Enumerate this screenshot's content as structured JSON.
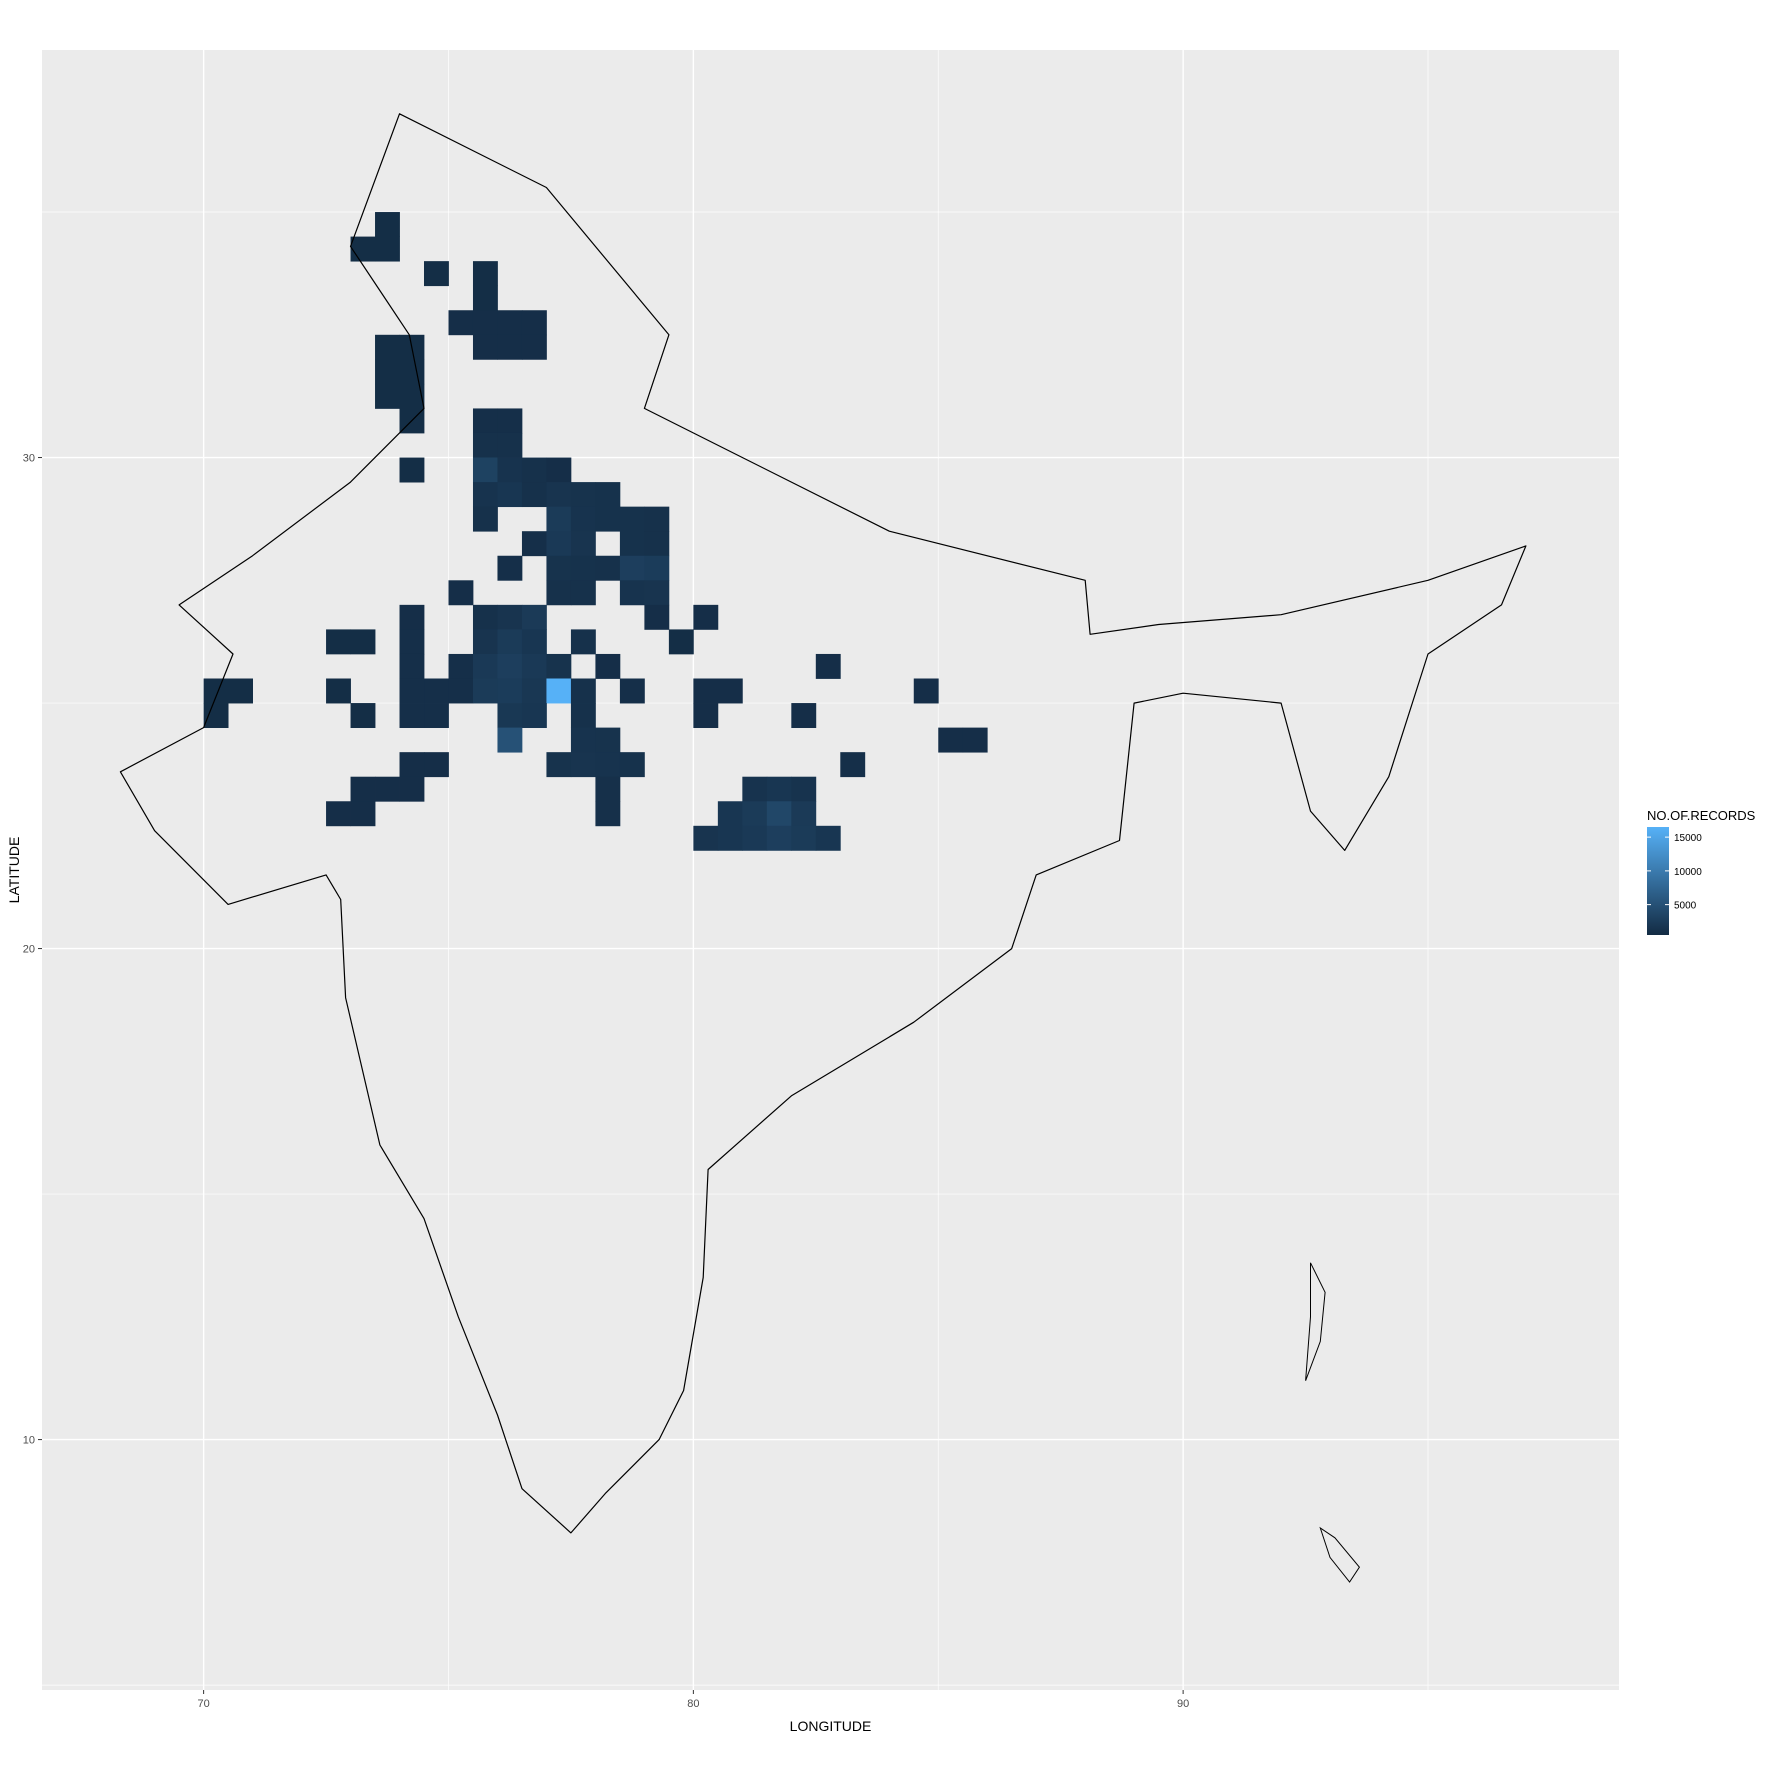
{
  "chart_data": {
    "type": "heatmap",
    "title": "",
    "xlabel": "LONGITUDE",
    "ylabel": "LATITUDE",
    "xlim": [
      66.7,
      98.9
    ],
    "ylim": [
      4.9,
      38.3
    ],
    "x_ticks": [
      70,
      80,
      90
    ],
    "y_ticks": [
      10,
      20,
      30
    ],
    "grid": true,
    "cell_size_deg": 0.5,
    "legend": {
      "title": "NO.OF.RECORDS",
      "position": "right",
      "ticks": [
        5000,
        10000,
        15000
      ],
      "min": 500,
      "max": 16500,
      "color_low": "#132B43",
      "color_high": "#56B1F7"
    },
    "cells": [
      [
        73.75,
        34.75,
        800
      ],
      [
        73.25,
        34.25,
        800
      ],
      [
        73.75,
        34.25,
        800
      ],
      [
        74.75,
        33.75,
        800
      ],
      [
        75.75,
        33.75,
        800
      ],
      [
        75.75,
        33.25,
        800
      ],
      [
        75.25,
        32.75,
        900
      ],
      [
        75.75,
        32.75,
        900
      ],
      [
        76.25,
        32.75,
        900
      ],
      [
        76.75,
        32.75,
        900
      ],
      [
        73.75,
        32.25,
        800
      ],
      [
        74.25,
        32.25,
        800
      ],
      [
        75.75,
        32.25,
        900
      ],
      [
        76.25,
        32.25,
        900
      ],
      [
        76.75,
        32.25,
        900
      ],
      [
        73.75,
        31.75,
        800
      ],
      [
        74.25,
        31.75,
        800
      ],
      [
        73.75,
        31.25,
        800
      ],
      [
        74.25,
        31.25,
        800
      ],
      [
        74.25,
        30.75,
        800
      ],
      [
        75.75,
        30.75,
        1000
      ],
      [
        76.25,
        30.75,
        1000
      ],
      [
        75.75,
        30.25,
        1200
      ],
      [
        76.25,
        30.25,
        1200
      ],
      [
        74.25,
        29.75,
        800
      ],
      [
        75.75,
        29.75,
        3200
      ],
      [
        76.25,
        29.75,
        1500
      ],
      [
        76.75,
        29.75,
        1200
      ],
      [
        77.25,
        29.75,
        900
      ],
      [
        75.75,
        29.25,
        1500
      ],
      [
        76.25,
        29.25,
        1800
      ],
      [
        76.75,
        29.25,
        1200
      ],
      [
        77.25,
        29.25,
        1600
      ],
      [
        77.75,
        29.25,
        1400
      ],
      [
        78.25,
        29.25,
        1300
      ],
      [
        75.75,
        28.75,
        1200
      ],
      [
        77.25,
        28.75,
        2400
      ],
      [
        77.75,
        28.75,
        1500
      ],
      [
        78.25,
        28.75,
        1300
      ],
      [
        78.75,
        28.75,
        1300
      ],
      [
        79.25,
        28.75,
        1200
      ],
      [
        76.75,
        28.25,
        1000
      ],
      [
        77.25,
        28.25,
        2200
      ],
      [
        77.75,
        28.25,
        1600
      ],
      [
        78.75,
        28.25,
        1300
      ],
      [
        79.25,
        28.25,
        1200
      ],
      [
        76.25,
        27.75,
        1000
      ],
      [
        77.25,
        27.75,
        1400
      ],
      [
        77.75,
        27.75,
        1300
      ],
      [
        78.25,
        27.75,
        1200
      ],
      [
        78.75,
        27.75,
        2800
      ],
      [
        79.25,
        27.75,
        2500
      ],
      [
        75.25,
        27.25,
        900
      ],
      [
        77.25,
        27.25,
        1200
      ],
      [
        77.75,
        27.25,
        1200
      ],
      [
        78.75,
        27.25,
        1500
      ],
      [
        79.25,
        27.25,
        1600
      ],
      [
        74.25,
        26.75,
        900
      ],
      [
        75.75,
        26.75,
        1200
      ],
      [
        76.25,
        26.75,
        1600
      ],
      [
        76.75,
        26.75,
        2300
      ],
      [
        79.25,
        26.75,
        900
      ],
      [
        80.25,
        26.75,
        900
      ],
      [
        72.75,
        26.25,
        800
      ],
      [
        73.25,
        26.25,
        800
      ],
      [
        74.25,
        26.25,
        1000
      ],
      [
        75.75,
        26.25,
        1600
      ],
      [
        76.25,
        26.25,
        2400
      ],
      [
        76.75,
        26.25,
        1800
      ],
      [
        77.75,
        26.25,
        1200
      ],
      [
        79.75,
        26.25,
        800
      ],
      [
        74.25,
        25.75,
        1000
      ],
      [
        75.25,
        25.75,
        1000
      ],
      [
        75.75,
        25.75,
        2200
      ],
      [
        76.25,
        25.75,
        2800
      ],
      [
        76.75,
        25.75,
        2200
      ],
      [
        77.25,
        25.75,
        1400
      ],
      [
        78.25,
        25.75,
        900
      ],
      [
        82.75,
        25.75,
        900
      ],
      [
        70.25,
        25.25,
        800
      ],
      [
        70.75,
        25.25,
        800
      ],
      [
        72.75,
        25.25,
        800
      ],
      [
        74.25,
        25.25,
        1000
      ],
      [
        74.75,
        25.25,
        1000
      ],
      [
        75.25,
        25.25,
        1000
      ],
      [
        75.75,
        25.25,
        2400
      ],
      [
        76.25,
        25.25,
        2500
      ],
      [
        76.75,
        25.25,
        1900
      ],
      [
        77.25,
        25.25,
        16500
      ],
      [
        77.75,
        25.25,
        1200
      ],
      [
        78.75,
        25.25,
        1000
      ],
      [
        80.25,
        25.25,
        900
      ],
      [
        80.75,
        25.25,
        900
      ],
      [
        84.75,
        25.25,
        900
      ],
      [
        70.25,
        24.75,
        800
      ],
      [
        73.25,
        24.75,
        800
      ],
      [
        74.25,
        24.75,
        1000
      ],
      [
        74.75,
        24.75,
        1000
      ],
      [
        76.25,
        24.75,
        2000
      ],
      [
        76.75,
        24.75,
        1800
      ],
      [
        77.75,
        24.75,
        1200
      ],
      [
        80.25,
        24.75,
        900
      ],
      [
        82.25,
        24.75,
        900
      ],
      [
        76.25,
        24.25,
        5000
      ],
      [
        77.75,
        24.25,
        1500
      ],
      [
        78.25,
        24.25,
        1400
      ],
      [
        85.25,
        24.25,
        900
      ],
      [
        85.75,
        24.25,
        900
      ],
      [
        74.25,
        23.75,
        900
      ],
      [
        74.75,
        23.75,
        900
      ],
      [
        77.25,
        23.75,
        1400
      ],
      [
        77.75,
        23.75,
        1600
      ],
      [
        78.25,
        23.75,
        1500
      ],
      [
        78.75,
        23.75,
        1300
      ],
      [
        83.25,
        23.75,
        1000
      ],
      [
        73.25,
        23.25,
        900
      ],
      [
        73.75,
        23.25,
        900
      ],
      [
        74.25,
        23.25,
        900
      ],
      [
        78.25,
        23.25,
        1100
      ],
      [
        81.25,
        23.25,
        1500
      ],
      [
        81.75,
        23.25,
        1800
      ],
      [
        82.25,
        23.25,
        1500
      ],
      [
        72.75,
        22.75,
        900
      ],
      [
        73.25,
        22.75,
        900
      ],
      [
        78.25,
        22.75,
        1100
      ],
      [
        80.75,
        22.75,
        1800
      ],
      [
        81.25,
        22.75,
        2400
      ],
      [
        81.75,
        22.75,
        3800
      ],
      [
        82.25,
        22.75,
        2300
      ],
      [
        80.25,
        22.25,
        1600
      ],
      [
        80.75,
        22.25,
        1800
      ],
      [
        81.25,
        22.25,
        2200
      ],
      [
        81.75,
        22.25,
        2800
      ],
      [
        82.25,
        22.25,
        2400
      ],
      [
        82.75,
        22.25,
        1800
      ]
    ]
  }
}
